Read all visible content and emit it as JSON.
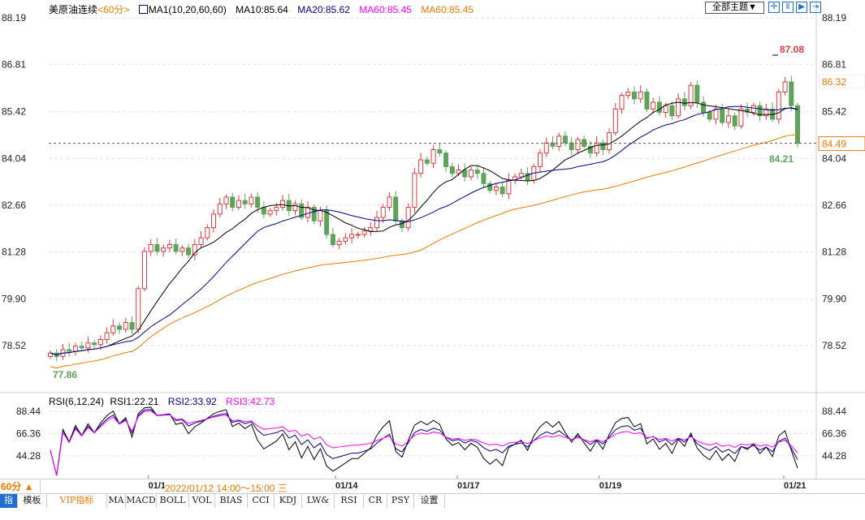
{
  "header": {
    "symbol": "美原油连续",
    "period": "<60分>",
    "ma_name": "MA1(10,20,60,60)",
    "ma10": "MA10:85.64",
    "ma20": "MA20:85.62",
    "ma60a": "MA60:85.45",
    "ma60b": "MA60:85.45",
    "theme_button": "全部主题▼"
  },
  "toolbar_icons": [
    "crosshair-icon",
    "zoom-in-icon",
    "play-icon",
    "exit-icon"
  ],
  "colors": {
    "up": "#e0393e",
    "down": "#5ea35a",
    "ma10": "#000000",
    "ma20": "#00008b",
    "ma60": "#f07800",
    "rsi1": "#000000",
    "rsi2": "#00008b",
    "rsi3": "#ff00ff",
    "accent": "#1e6fd0"
  },
  "price_axis": [
    "88.19",
    "86.81",
    "85.42",
    "84.04",
    "82.66",
    "81.28",
    "79.90",
    "78.52"
  ],
  "annotations": {
    "high": "87.08",
    "low": "77.86",
    "last": "84.49",
    "marker": "86.32"
  },
  "rsi": {
    "title": "RSI(6,12,24)",
    "rsi1": "RSI1:22.21",
    "rsi2": "RSI2:33.92",
    "rsi3": "RSI3:42.73",
    "axis": [
      "88.44",
      "66.36",
      "44.28"
    ]
  },
  "date_row": {
    "period": "60分 ▲",
    "hover": "2022/01/12 14:00～15:00 三",
    "dates": [
      {
        "label": "01/12",
        "index": 15.6
      },
      {
        "label": "01/14",
        "index": 45.4
      },
      {
        "label": "01/17",
        "index": 64.8
      },
      {
        "label": "01/19",
        "index": 87.4
      },
      {
        "label": "01/21",
        "index": 116.8
      }
    ]
  },
  "tabs": [
    "指标",
    "模板",
    "VIP指标",
    "MA",
    "MACD",
    "BOLL",
    "VOL",
    "BIAS",
    "CCI",
    "KDJ",
    "LW&",
    "RSI",
    "CR",
    "PSY",
    "设置"
  ],
  "chart_data": {
    "type": "candlestick",
    "ylim": [
      77.5,
      88.5
    ],
    "rsi_ylim": [
      20,
      100
    ],
    "close": [
      78.3,
      78.2,
      78.4,
      78.35,
      78.5,
      78.45,
      78.6,
      78.55,
      78.7,
      78.9,
      79.1,
      79.0,
      79.2,
      79.0,
      80.2,
      81.3,
      81.5,
      81.3,
      81.4,
      81.5,
      81.3,
      81.4,
      81.2,
      81.5,
      81.7,
      82.0,
      82.4,
      82.7,
      82.9,
      82.6,
      82.8,
      82.7,
      82.9,
      82.6,
      82.4,
      82.5,
      82.6,
      82.8,
      82.5,
      82.7,
      82.3,
      82.6,
      82.2,
      82.5,
      81.8,
      81.5,
      81.6,
      81.7,
      81.8,
      81.8,
      81.9,
      82.0,
      82.3,
      82.6,
      82.9,
      82.2,
      82.0,
      82.6,
      83.6,
      84.0,
      83.9,
      84.3,
      84.2,
      83.8,
      83.6,
      83.7,
      83.5,
      83.7,
      83.6,
      83.3,
      83.1,
      83.2,
      83.0,
      83.4,
      83.5,
      83.6,
      83.4,
      83.8,
      84.2,
      84.5,
      84.4,
      84.7,
      84.5,
      84.3,
      84.6,
      84.4,
      84.2,
      84.5,
      84.3,
      84.8,
      85.5,
      85.9,
      86.0,
      85.8,
      86.0,
      85.5,
      85.7,
      85.4,
      85.6,
      85.3,
      85.8,
      85.6,
      86.2,
      85.7,
      85.4,
      85.2,
      85.5,
      85.1,
      85.3,
      85.0,
      85.5,
      85.4,
      85.6,
      85.3,
      85.5,
      85.2,
      86.0,
      86.3,
      85.6,
      84.49
    ]
  }
}
